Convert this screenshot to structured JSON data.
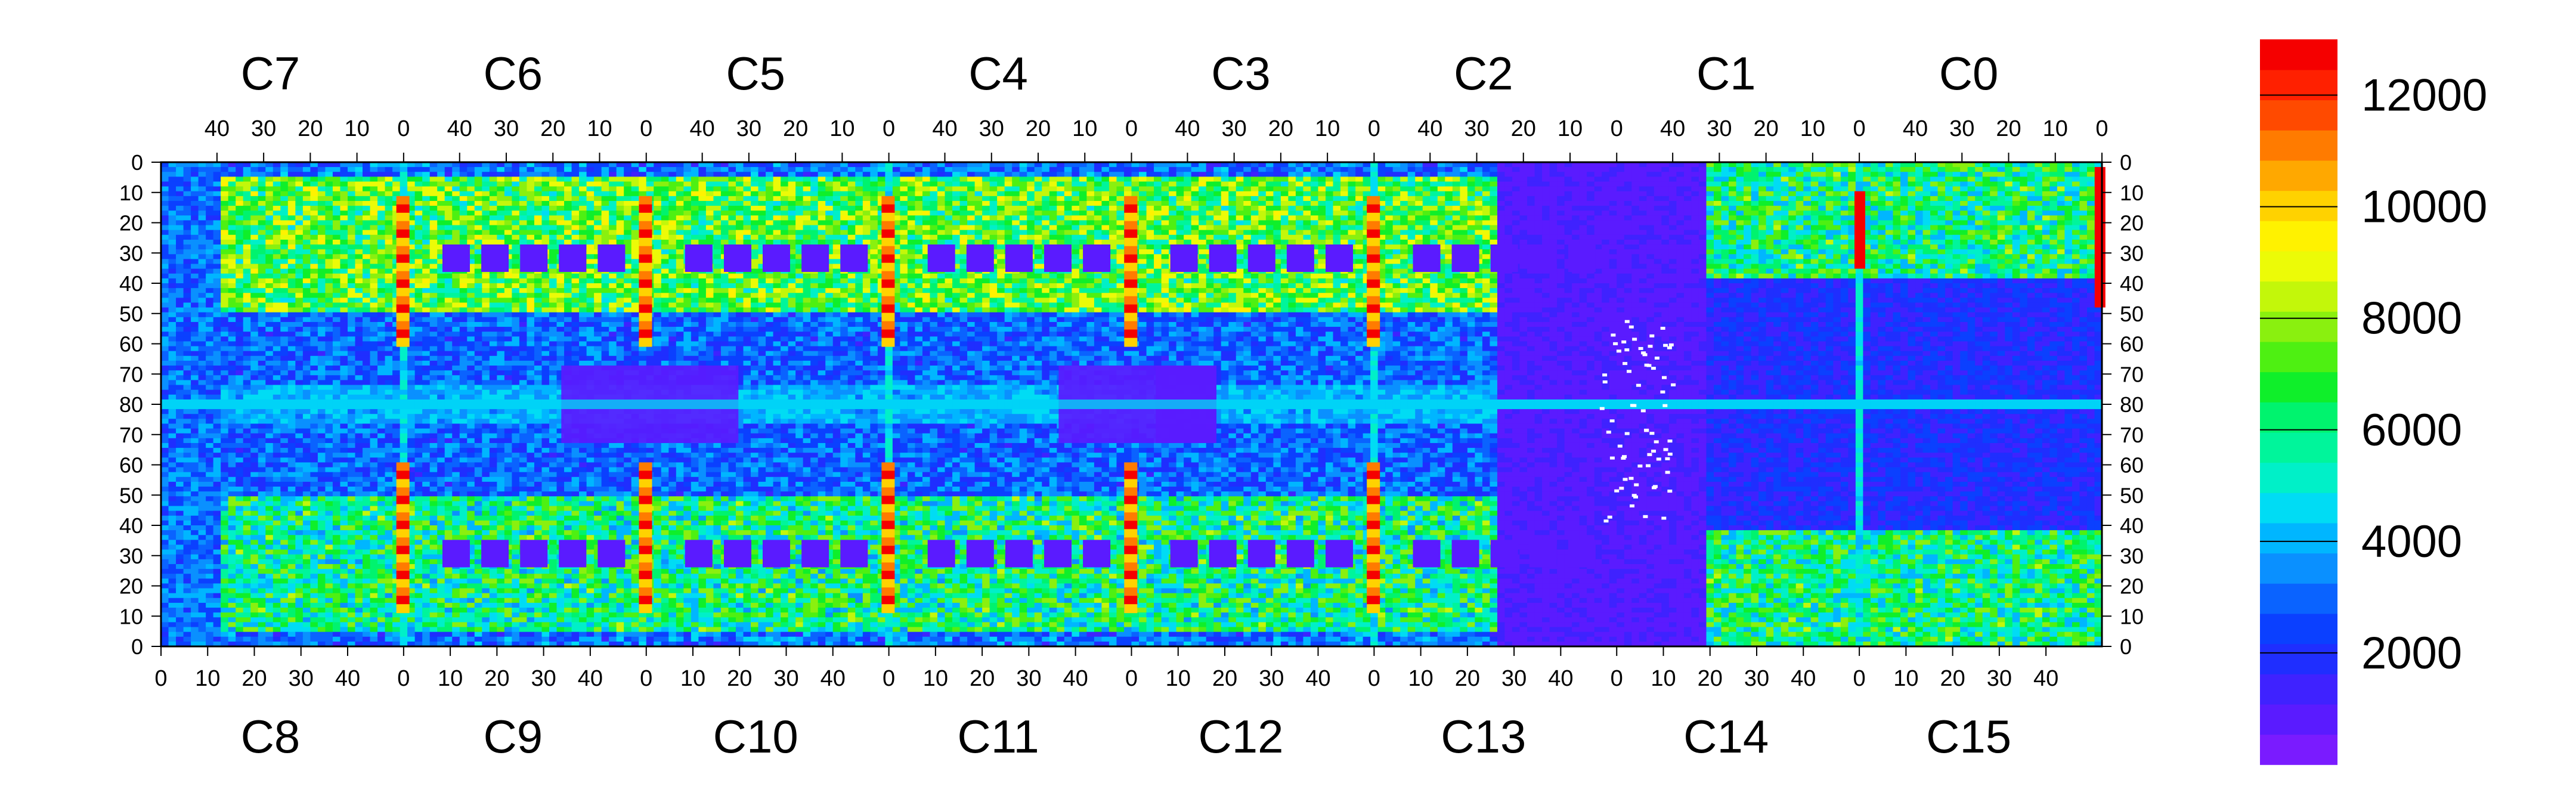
{
  "chart_data": {
    "type": "heatmap",
    "title": "",
    "xlabel": "",
    "ylabel": "",
    "grid": false,
    "top_chip_labels": [
      "C7",
      "C6",
      "C5",
      "C4",
      "C3",
      "C2",
      "C1",
      "C0"
    ],
    "bottom_chip_labels": [
      "C8",
      "C9",
      "C10",
      "C11",
      "C12",
      "C13",
      "C14",
      "C15"
    ],
    "top_column_ticks": [
      "40",
      "30",
      "20",
      "10",
      "0"
    ],
    "bottom_column_ticks": [
      "0",
      "10",
      "20",
      "30",
      "40"
    ],
    "top_half_row_ticks": [
      "0",
      "10",
      "20",
      "30",
      "40",
      "50",
      "60",
      "70",
      "80"
    ],
    "bottom_half_row_ticks": [
      "70",
      "60",
      "50",
      "40",
      "30",
      "20",
      "10",
      "0"
    ],
    "columns_per_chip": 52,
    "rows_per_half": 80,
    "colorbar": {
      "ticks": [
        "2000",
        "4000",
        "6000",
        "8000",
        "10000",
        "12000"
      ],
      "tick_values": [
        2000,
        4000,
        6000,
        8000,
        10000,
        12000
      ],
      "range": [
        0,
        13000
      ],
      "palette": [
        "#7a1bff",
        "#5a1bff",
        "#3f22ff",
        "#1f2eff",
        "#0b40ff",
        "#0a63ff",
        "#0a90ff",
        "#00b6ff",
        "#00dcf4",
        "#00f0c8",
        "#00f59b",
        "#00f36e",
        "#0fef2a",
        "#4ef012",
        "#8af00f",
        "#c3f70a",
        "#ecfb07",
        "#fff200",
        "#ffd200",
        "#ffa800",
        "#ff7b00",
        "#ff4a00",
        "#ff2000",
        "#f50000"
      ]
    }
  }
}
